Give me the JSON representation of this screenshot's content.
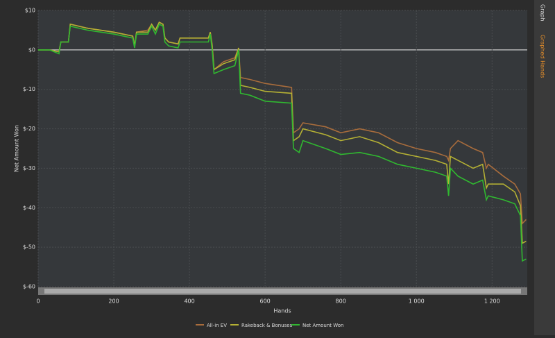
{
  "tabs": [
    "Graph",
    "Graphed Hands"
  ],
  "chart_data": {
    "type": "line",
    "x_label": "Hands",
    "y_label": "Net Amount Won",
    "xlim": [
      0,
      1293
    ],
    "ylim": [
      -60,
      10
    ],
    "grid": true,
    "legend": "bottom",
    "xticks": [
      0,
      200,
      400,
      600,
      800,
      {
        "value": 1000,
        "label": "1 000"
      },
      {
        "value": 1200,
        "label": "1 200"
      }
    ],
    "yticks": [
      {
        "value": 10,
        "label": "$10"
      },
      {
        "value": 0,
        "label": "$0"
      },
      {
        "value": -10,
        "label": "$-10"
      },
      {
        "value": -20,
        "label": "$-20"
      },
      {
        "value": -30,
        "label": "$-30"
      },
      {
        "value": -40,
        "label": "$-40"
      },
      {
        "value": -50,
        "label": "$-50"
      },
      {
        "value": -60,
        "label": "$-60"
      }
    ],
    "x": [
      0,
      30,
      55,
      60,
      80,
      85,
      130,
      200,
      250,
      255,
      260,
      290,
      300,
      310,
      320,
      330,
      335,
      345,
      370,
      375,
      420,
      450,
      455,
      460,
      465,
      490,
      520,
      530,
      535,
      560,
      600,
      670,
      675,
      690,
      700,
      760,
      800,
      850,
      900,
      950,
      1000,
      1050,
      1080,
      1085,
      1090,
      1110,
      1150,
      1175,
      1185,
      1190,
      1230,
      1260,
      1275,
      1280,
      1290
    ],
    "series": [
      {
        "name": "All-in EV",
        "color": "#a86c3c",
        "values": [
          0,
          0,
          -0.5,
          2,
          2,
          6.5,
          5.5,
          4.5,
          3.5,
          1,
          4.5,
          5,
          6.5,
          5,
          7,
          6.5,
          3,
          2,
          1.5,
          3,
          3,
          3,
          4.5,
          1.5,
          -5,
          -3,
          -2,
          0.5,
          -7,
          -7.5,
          -8.5,
          -9.5,
          -21,
          -20,
          -18.5,
          -19.5,
          -21,
          -20,
          -21,
          -23.5,
          -25,
          -26,
          -27,
          -28,
          -25,
          -23,
          -25,
          -26,
          -30,
          -29,
          -32,
          -34,
          -36.5,
          -44,
          -43
        ]
      },
      {
        "name": "Rakeback & Bonuses",
        "color": "#b4b034",
        "values": [
          0,
          0,
          -0.5,
          2,
          2,
          6.5,
          5.5,
          4.5,
          3.5,
          1,
          4.5,
          4.5,
          6.5,
          5,
          7,
          6.5,
          3,
          2,
          1.5,
          3,
          3,
          3,
          4.5,
          1,
          -5,
          -3.5,
          -2.5,
          0.5,
          -9,
          -9.5,
          -10.5,
          -11,
          -23,
          -22,
          -20,
          -21.5,
          -23,
          -22,
          -23.5,
          -26,
          -27,
          -28,
          -29,
          -34,
          -27,
          -28,
          -30,
          -29,
          -35,
          -34,
          -34,
          -36,
          -39.5,
          -49,
          -48.5
        ]
      },
      {
        "name": "Net Amount Won",
        "color": "#30b830",
        "values": [
          0,
          0,
          -1,
          2,
          2,
          6,
          5,
          4,
          3,
          0.5,
          4,
          4,
          6,
          4,
          6.5,
          6,
          2,
          1,
          0.5,
          2,
          2,
          2,
          4,
          0,
          -6,
          -5,
          -4,
          0,
          -11,
          -11.5,
          -13,
          -13.5,
          -25,
          -26,
          -23,
          -25,
          -26.5,
          -26,
          -27,
          -29,
          -30,
          -31,
          -32,
          -37,
          -30,
          -32,
          -34,
          -33,
          -38,
          -37,
          -38,
          -39,
          -42,
          -53.5,
          -53
        ]
      }
    ]
  }
}
